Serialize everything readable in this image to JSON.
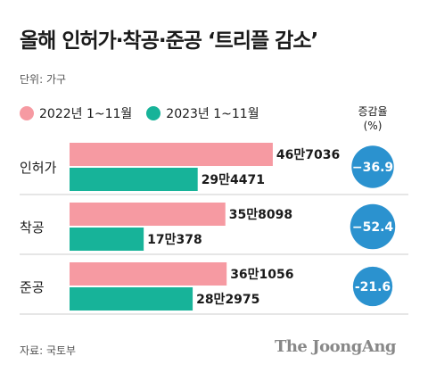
{
  "title": "올해 인허가·착공·준공 ‘트리플 감소’",
  "unit_label": "단위: 가구",
  "change_header_line1": "증감율",
  "change_header_line2": "(%)",
  "source": "자료: 국토부",
  "brand": "The JoongAng",
  "colors": {
    "series_2022": "#f69aa2",
    "series_2023": "#17b399",
    "change_circle": "#2b92cf",
    "divider": "#cccccc"
  },
  "chart_data": {
    "type": "bar",
    "orientation": "horizontal",
    "categories": [
      "인허가",
      "착공",
      "준공"
    ],
    "series": [
      {
        "name": "2022년 1~11월",
        "values": [
          467036,
          358098,
          361056
        ],
        "labels": [
          "46만7036",
          "35만8098",
          "36만1056"
        ]
      },
      {
        "name": "2023년 1~11월",
        "values": [
          294471,
          170378,
          282975
        ],
        "labels": [
          "29만4471",
          "17만378",
          "28만2975"
        ]
      }
    ],
    "change_pct": [
      -36.9,
      -52.4,
      -21.6
    ],
    "change_labels": [
      "−36.9",
      "−52.4",
      "-21.6"
    ]
  }
}
